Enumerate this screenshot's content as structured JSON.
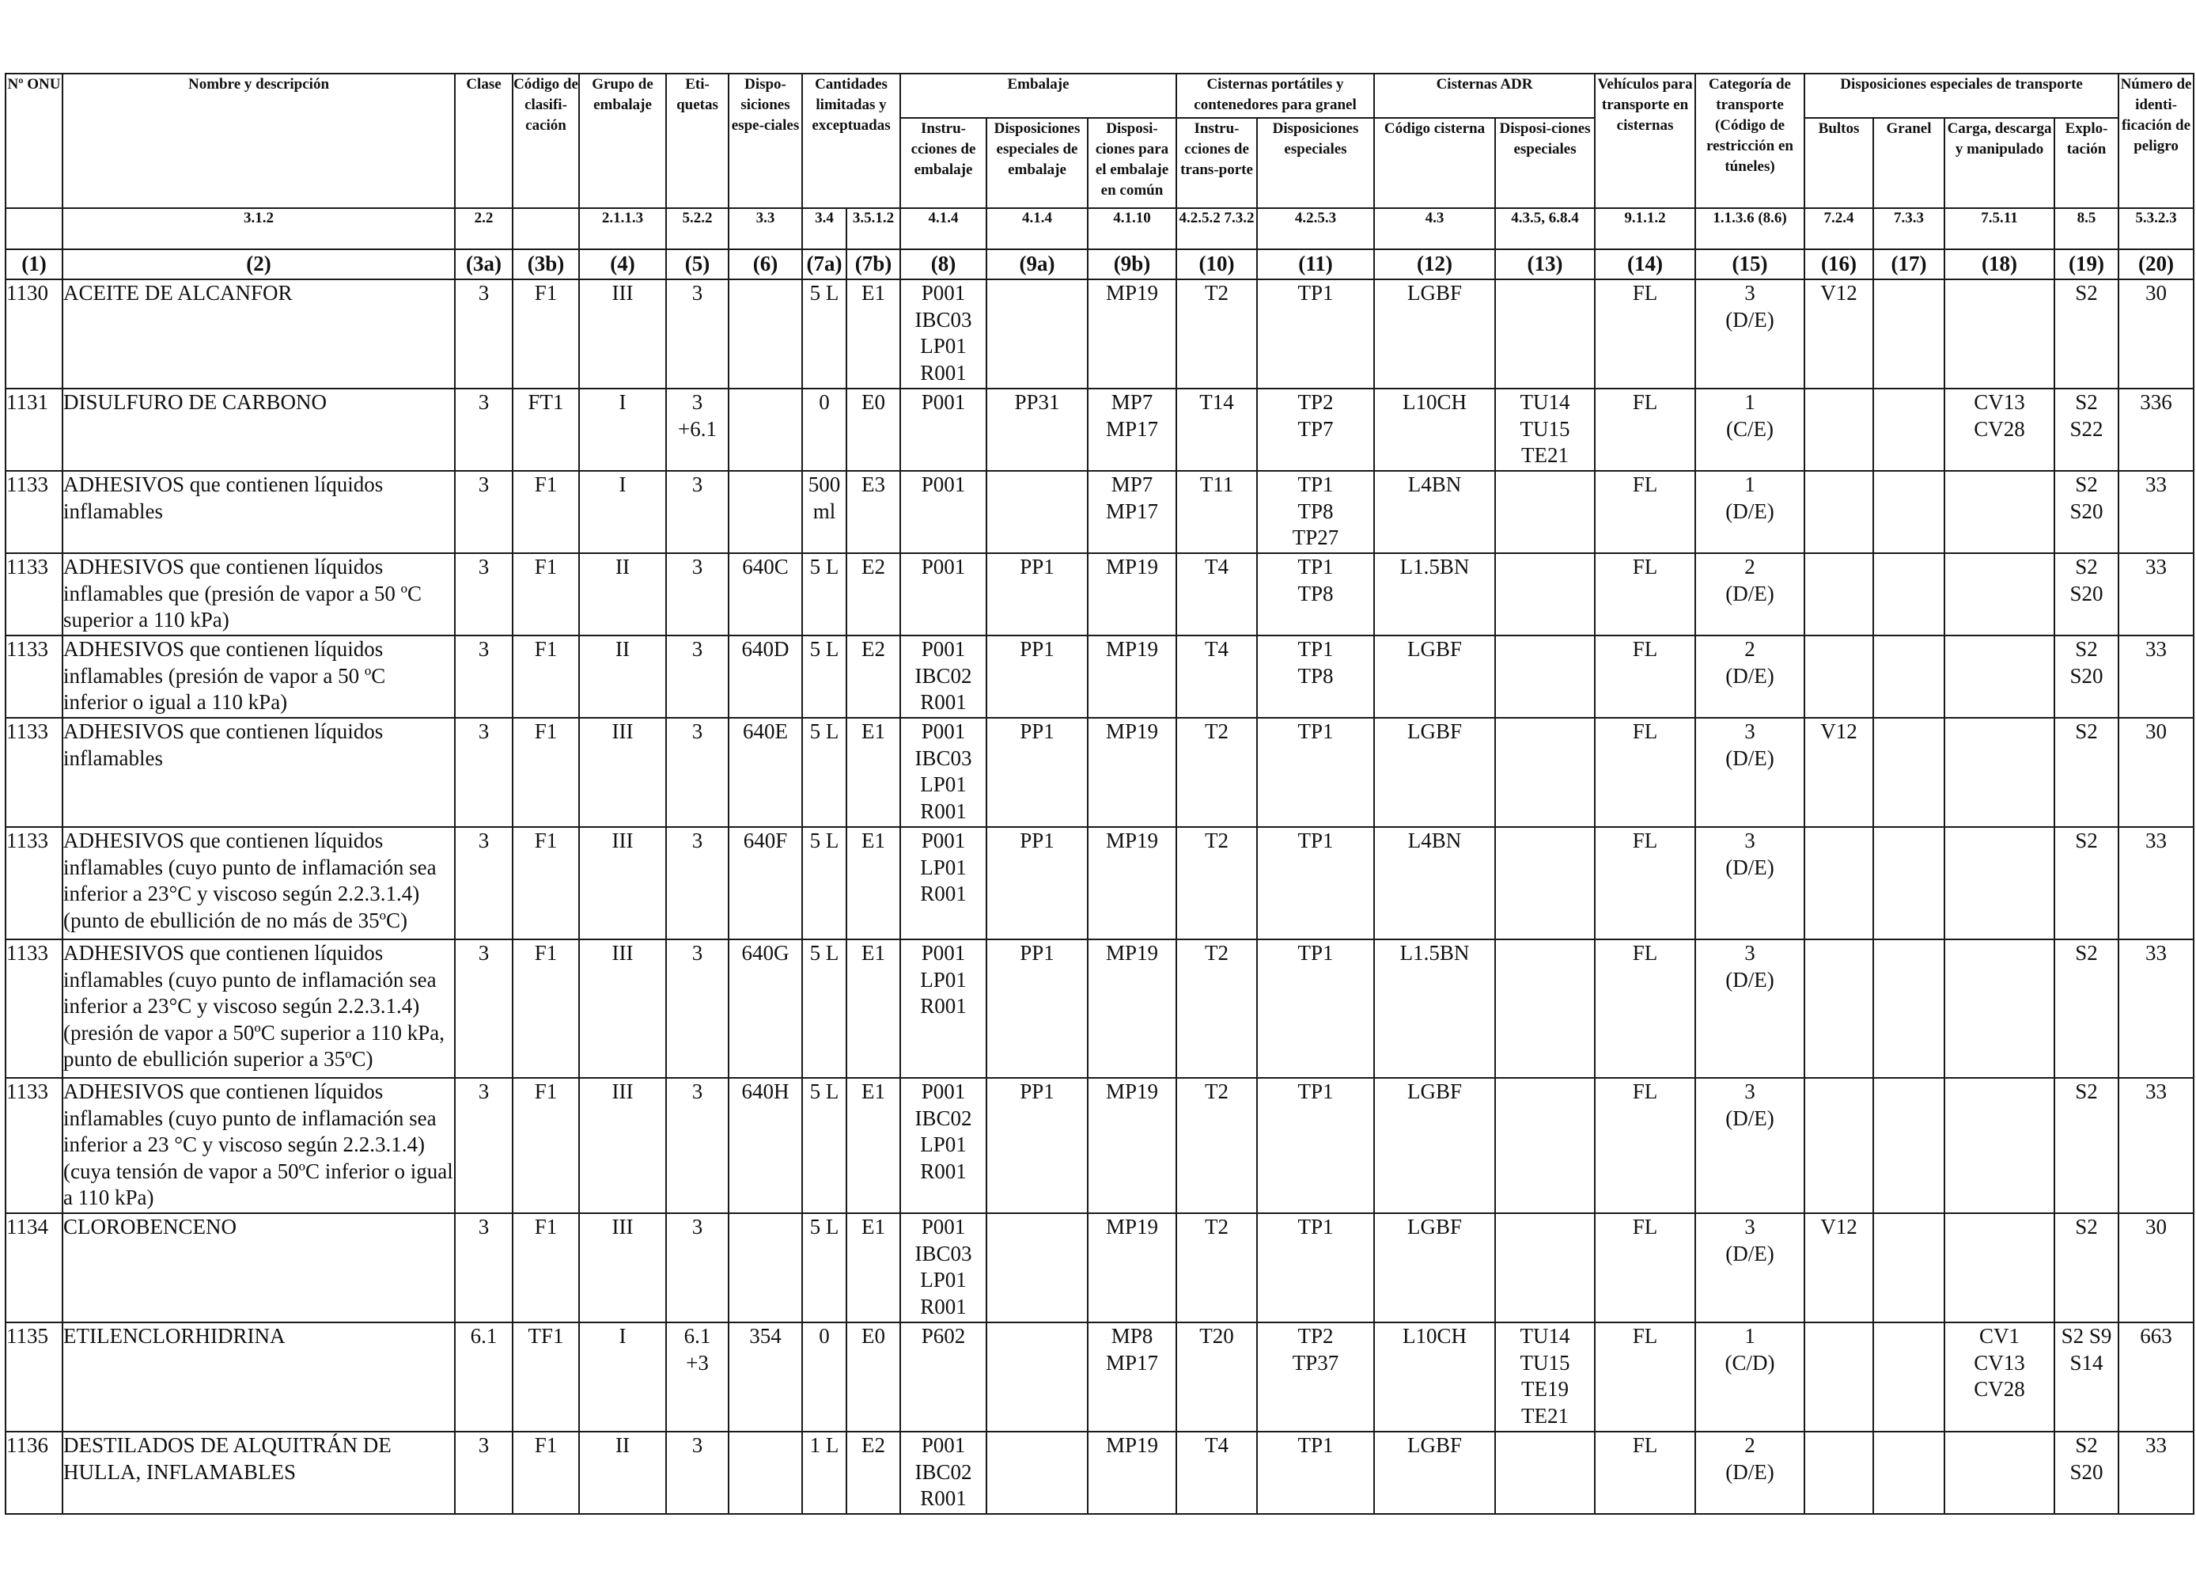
{
  "header": {
    "c1": "Nº ONU",
    "c2": "Nombre y descripción",
    "c3a": "Clase",
    "c3b": "Código de clasifi-cación",
    "c4": "Grupo de embalaje",
    "c5": "Eti-quetas",
    "c6": "Dispo-siciones espe-ciales",
    "c7": "Cantidades limitadas y exceptuadas",
    "g_embalaje": "Embalaje",
    "c8": "Instru-cciones de embalaje",
    "c9a": "Disposiciones especiales de embalaje",
    "c9b": "Disposi-ciones para el embalaje en común",
    "g_cisternas_port": "Cisternas portátiles y contenedores para granel",
    "c10": "Instru-cciones de trans-porte",
    "c11": "Disposiciones especiales",
    "g_cisternas_adr": "Cisternas ADR",
    "c12": "Código cisterna",
    "c13": "Disposi-ciones especiales",
    "c14": "Vehículos para transporte en cisternas",
    "c15": "Categoría de transporte (Código de restricción en túneles)",
    "g_disp_transporte": "Disposiciones especiales de transporte",
    "c16": "Bultos",
    "c17": "Granel",
    "c18": "Carga, descarga y manipulado",
    "c19": "Explo-tación",
    "c20": "Número de identi-ficación de peligro"
  },
  "refs": {
    "c2": "3.1.2",
    "c3a": "2.2",
    "c4": "2.1.1.3",
    "c5": "5.2.2",
    "c6": "3.3",
    "c7a": "3.4",
    "c7b": "3.5.1.2",
    "c8": "4.1.4",
    "c9a": "4.1.4",
    "c9b": "4.1.10",
    "c10": "4.2.5.2 7.3.2",
    "c11": "4.2.5.3",
    "c12": "4.3",
    "c13": "4.3.5, 6.8.4",
    "c14": "9.1.1.2",
    "c15": "1.1.3.6 (8.6)",
    "c16": "7.2.4",
    "c17": "7.3.3",
    "c18": "7.5.11",
    "c19": "8.5",
    "c20": "5.3.2.3"
  },
  "colnums": [
    "(1)",
    "(2)",
    "(3a)",
    "(3b)",
    "(4)",
    "(5)",
    "(6)",
    "(7a)",
    "(7b)",
    "(8)",
    "(9a)",
    "(9b)",
    "(10)",
    "(11)",
    "(12)",
    "(13)",
    "(14)",
    "(15)",
    "(16)",
    "(17)",
    "(18)",
    "(19)",
    "(20)"
  ],
  "rows": [
    {
      "c1": "1130",
      "c2": "ACEITE DE ALCANFOR",
      "c3a": "3",
      "c3b": "F1",
      "c4": "III",
      "c5": [
        "3"
      ],
      "c6": "",
      "c7a": [
        "5 L"
      ],
      "c7b": "E1",
      "c8": [
        "P001",
        "IBC03",
        "LP01",
        "R001"
      ],
      "c9a": "",
      "c9b": [
        "MP19"
      ],
      "c10": "T2",
      "c11": [
        "TP1"
      ],
      "c12": "LGBF",
      "c13": [],
      "c14": "FL",
      "c15": [
        "3",
        "(D/E)"
      ],
      "c16": "V12",
      "c17": "",
      "c18": [],
      "c19": [
        "S2"
      ],
      "c20": "30"
    },
    {
      "c1": "1131",
      "c2": "DISULFURO DE CARBONO",
      "c3a": "3",
      "c3b": "FT1",
      "c4": "I",
      "c5": [
        "3",
        "+6.1"
      ],
      "c6": "",
      "c7a": [
        "0"
      ],
      "c7b": "E0",
      "c8": [
        "P001"
      ],
      "c9a": "PP31",
      "c9b": [
        "MP7",
        "MP17"
      ],
      "c10": "T14",
      "c11": [
        "TP2",
        "TP7"
      ],
      "c12": "L10CH",
      "c13": [
        "TU14",
        "TU15",
        "TE21"
      ],
      "c14": "FL",
      "c15": [
        "1",
        "(C/E)"
      ],
      "c16": "",
      "c17": "",
      "c18": [
        "CV13",
        "CV28"
      ],
      "c19": [
        "S2",
        "S22"
      ],
      "c20": "336"
    },
    {
      "c1": "1133",
      "c2": "ADHESIVOS que contienen líquidos inflamables",
      "c3a": "3",
      "c3b": "F1",
      "c4": "I",
      "c5": [
        "3"
      ],
      "c6": "",
      "c7a": [
        "500",
        "ml"
      ],
      "c7b": "E3",
      "c8": [
        "P001"
      ],
      "c9a": "",
      "c9b": [
        "MP7",
        "MP17"
      ],
      "c10": "T11",
      "c11": [
        "TP1",
        "TP8",
        "TP27"
      ],
      "c12": "L4BN",
      "c13": [],
      "c14": "FL",
      "c15": [
        "1",
        "(D/E)"
      ],
      "c16": "",
      "c17": "",
      "c18": [],
      "c19": [
        "S2",
        "S20"
      ],
      "c20": "33"
    },
    {
      "c1": "1133",
      "c2": "ADHESIVOS que contienen líquidos inflamables que (presión de vapor a 50 ºC superior a 110 kPa)",
      "c3a": "3",
      "c3b": "F1",
      "c4": "II",
      "c5": [
        "3"
      ],
      "c6": "640C",
      "c7a": [
        "5 L"
      ],
      "c7b": "E2",
      "c8": [
        "P001"
      ],
      "c9a": "PP1",
      "c9b": [
        "MP19"
      ],
      "c10": "T4",
      "c11": [
        "TP1",
        "TP8"
      ],
      "c12": "L1.5BN",
      "c13": [],
      "c14": "FL",
      "c15": [
        "2",
        "(D/E)"
      ],
      "c16": "",
      "c17": "",
      "c18": [],
      "c19": [
        "S2",
        "S20"
      ],
      "c20": "33"
    },
    {
      "c1": "1133",
      "c2": "ADHESIVOS que contienen líquidos inflamables (presión de vapor a 50 ºC inferior o igual a 110 kPa)",
      "c3a": "3",
      "c3b": "F1",
      "c4": "II",
      "c5": [
        "3"
      ],
      "c6": "640D",
      "c7a": [
        "5 L"
      ],
      "c7b": "E2",
      "c8": [
        "P001",
        "IBC02",
        "R001"
      ],
      "c9a": "PP1",
      "c9b": [
        "MP19"
      ],
      "c10": "T4",
      "c11": [
        "TP1",
        "TP8"
      ],
      "c12": "LGBF",
      "c13": [],
      "c14": "FL",
      "c15": [
        "2",
        "(D/E)"
      ],
      "c16": "",
      "c17": "",
      "c18": [],
      "c19": [
        "S2",
        "S20"
      ],
      "c20": "33"
    },
    {
      "c1": "1133",
      "c2": "ADHESIVOS que contienen líquidos inflamables",
      "c3a": "3",
      "c3b": "F1",
      "c4": "III",
      "c5": [
        "3"
      ],
      "c6": "640E",
      "c7a": [
        "5 L"
      ],
      "c7b": "E1",
      "c8": [
        "P001",
        "IBC03",
        "LP01",
        "R001"
      ],
      "c9a": "PP1",
      "c9b": [
        "MP19"
      ],
      "c10": "T2",
      "c11": [
        "TP1"
      ],
      "c12": "LGBF",
      "c13": [],
      "c14": "FL",
      "c15": [
        "3",
        "(D/E)"
      ],
      "c16": "V12",
      "c17": "",
      "c18": [],
      "c19": [
        "S2"
      ],
      "c20": "30"
    },
    {
      "c1": "1133",
      "c2": "ADHESIVOS que contienen líquidos inflamables (cuyo punto de inflamación sea inferior a 23°C y viscoso según 2.2.3.1.4) (punto de ebullición de no más de 35ºC)",
      "c3a": "3",
      "c3b": "F1",
      "c4": "III",
      "c5": [
        "3"
      ],
      "c6": "640F",
      "c7a": [
        "5 L"
      ],
      "c7b": "E1",
      "c8": [
        "P001",
        "LP01",
        "R001"
      ],
      "c9a": "PP1",
      "c9b": [
        "MP19"
      ],
      "c10": "T2",
      "c11": [
        "TP1"
      ],
      "c12": "L4BN",
      "c13": [],
      "c14": "FL",
      "c15": [
        "3",
        "(D/E)"
      ],
      "c16": "",
      "c17": "",
      "c18": [],
      "c19": [
        "S2"
      ],
      "c20": "33"
    },
    {
      "c1": "1133",
      "c2": "ADHESIVOS que contienen líquidos inflamables (cuyo punto de inflamación sea inferior a 23°C y viscoso según 2.2.3.1.4) (presión de vapor a 50ºC superior a 110 kPa, punto de ebullición superior a 35ºC)",
      "c3a": "3",
      "c3b": "F1",
      "c4": "III",
      "c5": [
        "3"
      ],
      "c6": "640G",
      "c7a": [
        "5 L"
      ],
      "c7b": "E1",
      "c8": [
        "P001",
        "LP01",
        "R001"
      ],
      "c9a": "PP1",
      "c9b": [
        "MP19"
      ],
      "c10": "T2",
      "c11": [
        "TP1"
      ],
      "c12": "L1.5BN",
      "c13": [],
      "c14": "FL",
      "c15": [
        "3",
        "(D/E)"
      ],
      "c16": "",
      "c17": "",
      "c18": [],
      "c19": [
        "S2"
      ],
      "c20": "33"
    },
    {
      "c1": "1133",
      "c2": "ADHESIVOS que contienen líquidos inflamables (cuyo punto de inflamación sea inferior a 23 °C y viscoso según 2.2.3.1.4) (cuya tensión de vapor a 50ºC inferior o igual a 110 kPa)",
      "c3a": "3",
      "c3b": "F1",
      "c4": "III",
      "c5": [
        "3"
      ],
      "c6": "640H",
      "c7a": [
        "5 L"
      ],
      "c7b": "E1",
      "c8": [
        "P001",
        "IBC02",
        "LP01",
        "R001"
      ],
      "c9a": "PP1",
      "c9b": [
        "MP19"
      ],
      "c10": "T2",
      "c11": [
        "TP1"
      ],
      "c12": "LGBF",
      "c13": [],
      "c14": "FL",
      "c15": [
        "3",
        "(D/E)"
      ],
      "c16": "",
      "c17": "",
      "c18": [],
      "c19": [
        "S2"
      ],
      "c20": "33"
    },
    {
      "c1": "1134",
      "c2": "CLOROBENCENO",
      "c3a": "3",
      "c3b": "F1",
      "c4": "III",
      "c5": [
        "3"
      ],
      "c6": "",
      "c7a": [
        "5 L"
      ],
      "c7b": "E1",
      "c8": [
        "P001",
        "IBC03",
        "LP01",
        "R001"
      ],
      "c9a": "",
      "c9b": [
        "MP19"
      ],
      "c10": "T2",
      "c11": [
        "TP1"
      ],
      "c12": "LGBF",
      "c13": [],
      "c14": "FL",
      "c15": [
        "3",
        "(D/E)"
      ],
      "c16": "V12",
      "c17": "",
      "c18": [],
      "c19": [
        "S2"
      ],
      "c20": "30"
    },
    {
      "c1": "1135",
      "c2": "ETILENCLORHIDRINA",
      "c3a": "6.1",
      "c3b": "TF1",
      "c4": "I",
      "c5": [
        "6.1",
        "+3"
      ],
      "c6": "354",
      "c7a": [
        "0"
      ],
      "c7b": "E0",
      "c8": [
        "P602"
      ],
      "c9a": "",
      "c9b": [
        "MP8",
        "MP17"
      ],
      "c10": "T20",
      "c11": [
        "TP2",
        "TP37"
      ],
      "c12": "L10CH",
      "c13": [
        "TU14",
        "TU15",
        "TE19",
        "TE21"
      ],
      "c14": "FL",
      "c15": [
        "1",
        "(C/D)"
      ],
      "c16": "",
      "c17": "",
      "c18": [
        "CV1",
        "CV13",
        "CV28"
      ],
      "c19": [
        "S2 S9",
        "S14"
      ],
      "c20": "663"
    },
    {
      "c1": "1136",
      "c2": "DESTILADOS DE ALQUITRÁN DE HULLA, INFLAMABLES",
      "c3a": "3",
      "c3b": "F1",
      "c4": "II",
      "c5": [
        "3"
      ],
      "c6": "",
      "c7a": [
        "1 L"
      ],
      "c7b": "E2",
      "c8": [
        "P001",
        "IBC02",
        "R001"
      ],
      "c9a": "",
      "c9b": [
        "MP19"
      ],
      "c10": "T4",
      "c11": [
        "TP1"
      ],
      "c12": "LGBF",
      "c13": [],
      "c14": "FL",
      "c15": [
        "2",
        "(D/E)"
      ],
      "c16": "",
      "c17": "",
      "c18": [],
      "c19": [
        "S2",
        "S20"
      ],
      "c20": "33"
    }
  ]
}
